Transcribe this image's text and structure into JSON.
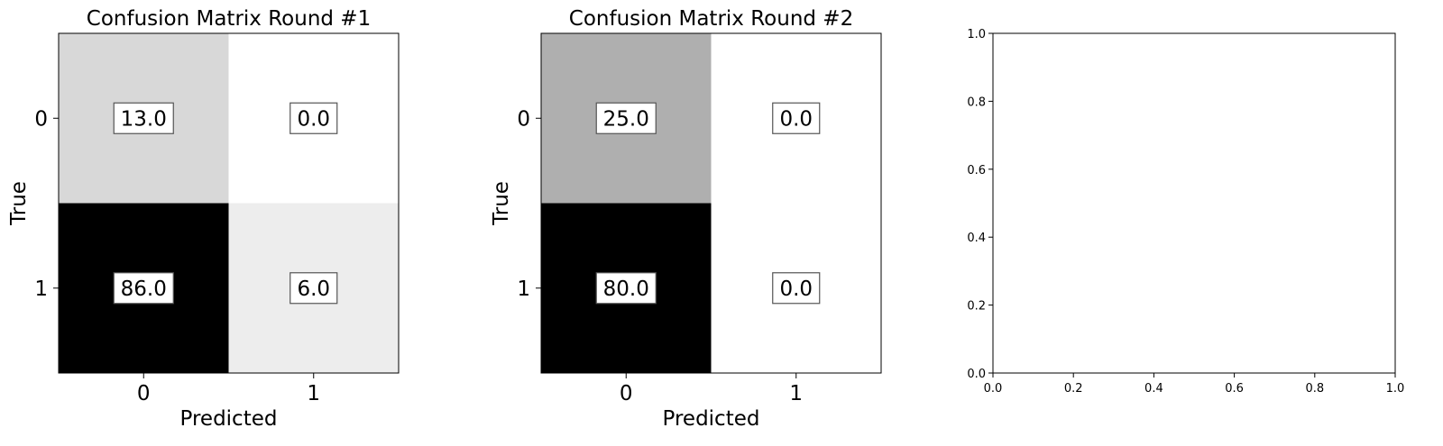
{
  "chart_data": [
    {
      "type": "heatmap",
      "title": "Confusion Matrix Round #1",
      "xlabel": "Predicted",
      "ylabel": "True",
      "x_ticks": [
        "0",
        "1"
      ],
      "y_ticks": [
        "0",
        "1"
      ],
      "values": [
        [
          13.0,
          0.0
        ],
        [
          86.0,
          6.0
        ]
      ],
      "value_labels": [
        [
          "13.0",
          "0.0"
        ],
        [
          "86.0",
          "6.0"
        ]
      ],
      "colormap": "Greys"
    },
    {
      "type": "heatmap",
      "title": "Confusion Matrix Round #2",
      "xlabel": "Predicted",
      "ylabel": "True",
      "x_ticks": [
        "0",
        "1"
      ],
      "y_ticks": [
        "0",
        "1"
      ],
      "values": [
        [
          25.0,
          0.0
        ],
        [
          80.0,
          0.0
        ]
      ],
      "value_labels": [
        [
          "25.0",
          "0.0"
        ],
        [
          "80.0",
          "0.0"
        ]
      ],
      "colormap": "Greys"
    },
    {
      "type": "scatter",
      "title": "",
      "xlabel": "",
      "ylabel": "",
      "xlim": [
        0.0,
        1.0
      ],
      "ylim": [
        0.0,
        1.0
      ],
      "x_ticks": [
        "0.0",
        "0.2",
        "0.4",
        "0.6",
        "0.8",
        "1.0"
      ],
      "y_ticks": [
        "0.0",
        "0.2",
        "0.4",
        "0.6",
        "0.8",
        "1.0"
      ],
      "series": []
    }
  ]
}
